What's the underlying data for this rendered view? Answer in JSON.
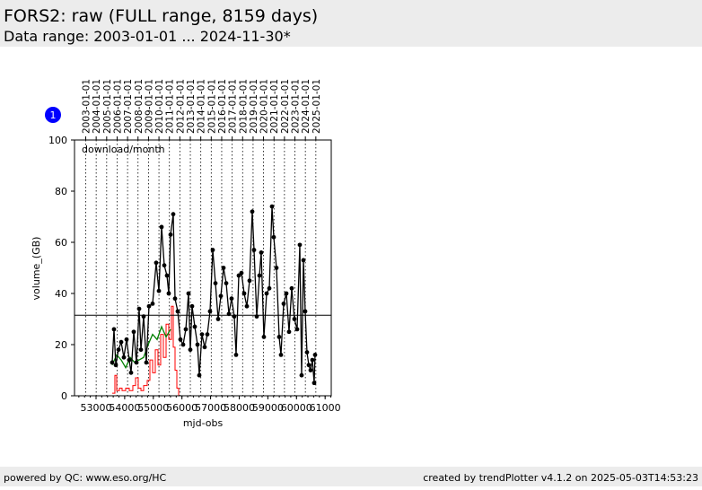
{
  "header": {
    "title": "FORS2: raw (FULL range, 8159 days)",
    "subtitle": "Data range: 2003-01-01 ... 2024-11-30*"
  },
  "chart_data": {
    "type": "line",
    "annotation": "download/month",
    "badge": "1",
    "xlabel": "mjd-obs",
    "ylabel": "volume_(GB)",
    "xlim": [
      52248,
      61214
    ],
    "ylim": [
      0,
      100
    ],
    "xticks": [
      53000,
      54000,
      55000,
      56000,
      57000,
      58000,
      59000,
      60000,
      61000
    ],
    "yticks": [
      0,
      20,
      40,
      60,
      80,
      100
    ],
    "x2ticks": [
      {
        "value": 52640,
        "label": "2003-01-01"
      },
      {
        "value": 53005,
        "label": "2004-01-01"
      },
      {
        "value": 53371,
        "label": "2005-01-01"
      },
      {
        "value": 53736,
        "label": "2006-01-01"
      },
      {
        "value": 54101,
        "label": "2007-01-01"
      },
      {
        "value": 54466,
        "label": "2008-01-01"
      },
      {
        "value": 54832,
        "label": "2009-01-01"
      },
      {
        "value": 55197,
        "label": "2010-01-01"
      },
      {
        "value": 55562,
        "label": "2011-01-01"
      },
      {
        "value": 55927,
        "label": "2012-01-01"
      },
      {
        "value": 56293,
        "label": "2013-01-01"
      },
      {
        "value": 56658,
        "label": "2014-01-01"
      },
      {
        "value": 57023,
        "label": "2015-01-01"
      },
      {
        "value": 57388,
        "label": "2016-01-01"
      },
      {
        "value": 57754,
        "label": "2017-01-01"
      },
      {
        "value": 58119,
        "label": "2018-01-01"
      },
      {
        "value": 58484,
        "label": "2019-01-01"
      },
      {
        "value": 58849,
        "label": "2020-01-01"
      },
      {
        "value": 59215,
        "label": "2021-01-01"
      },
      {
        "value": 59580,
        "label": "2022-01-01"
      },
      {
        "value": 59945,
        "label": "2023-01-01"
      },
      {
        "value": 60310,
        "label": "2024-01-01"
      },
      {
        "value": 60676,
        "label": "2025-01-01"
      }
    ],
    "hline": 31.5,
    "series": [
      {
        "color": "#ff0000",
        "step": true,
        "x": [
          53564,
          53658,
          53721,
          53815,
          53909,
          54035,
          54160,
          54285,
          54379,
          54473,
          54568,
          54662,
          54787,
          54881,
          54975,
          55069,
          55163,
          55257,
          55351,
          55446,
          55539,
          55633,
          55696,
          55759,
          55822,
          55885,
          60618
        ],
        "values": [
          1,
          8,
          2,
          3,
          2,
          3,
          2,
          4,
          7,
          3,
          2,
          4,
          6,
          14,
          9,
          18,
          12,
          24,
          15,
          28,
          22,
          35,
          19,
          10,
          3,
          0,
          0
        ]
      },
      {
        "color": "#008000",
        "x": [
          53564,
          53721,
          53878,
          54035,
          54192,
          54348,
          54505,
          54662,
          54819,
          54975,
          55132,
          55289,
          55446,
          55602
        ],
        "values": [
          12,
          16,
          14,
          11,
          15,
          13,
          14,
          15,
          20,
          24,
          22,
          27,
          23,
          26
        ]
      },
      {
        "color": "#000000",
        "marker": true,
        "x": [
          53564,
          53627,
          53690,
          53784,
          53878,
          53972,
          54066,
          54160,
          54223,
          54317,
          54411,
          54505,
          54568,
          54662,
          54756,
          54850,
          54975,
          55100,
          55195,
          55289,
          55383,
          55477,
          55539,
          55602,
          55696,
          55759,
          55853,
          55947,
          56041,
          56135,
          56229,
          56292,
          56354,
          56449,
          56543,
          56605,
          56699,
          56793,
          56887,
          56981,
          57076,
          57170,
          57264,
          57358,
          57452,
          57546,
          57640,
          57734,
          57828,
          57891,
          57985,
          58079,
          58173,
          58267,
          58361,
          58455,
          58518,
          58612,
          58706,
          58768,
          58862,
          58957,
          59051,
          59145,
          59207,
          59301,
          59395,
          59458,
          59552,
          59646,
          59740,
          59834,
          59928,
          60022,
          60116,
          60179,
          60242,
          60304,
          60367,
          60430,
          60493,
          60555,
          60618,
          60649
        ],
        "values": [
          13,
          26,
          12,
          18,
          21,
          15,
          22,
          14,
          9,
          25,
          13,
          34,
          18,
          31,
          13,
          35,
          36,
          52,
          41,
          66,
          51,
          47,
          40,
          63,
          71,
          38,
          33,
          22,
          20,
          26,
          40,
          18,
          35,
          27,
          20,
          8,
          24,
          19,
          24,
          33,
          57,
          44,
          30,
          39,
          50,
          44,
          32,
          38,
          31,
          16,
          47,
          48,
          40,
          35,
          45,
          72,
          57,
          31,
          47,
          56,
          23,
          40,
          42,
          74,
          62,
          50,
          23,
          16,
          36,
          40,
          25,
          42,
          30,
          26,
          59,
          8,
          53,
          33,
          17,
          12,
          10,
          14,
          5,
          16
        ]
      }
    ]
  },
  "footer": {
    "left": "powered by QC: www.eso.org/HC",
    "right": "created by trendPlotter v4.1.2 on 2025-05-03T14:53:23"
  }
}
